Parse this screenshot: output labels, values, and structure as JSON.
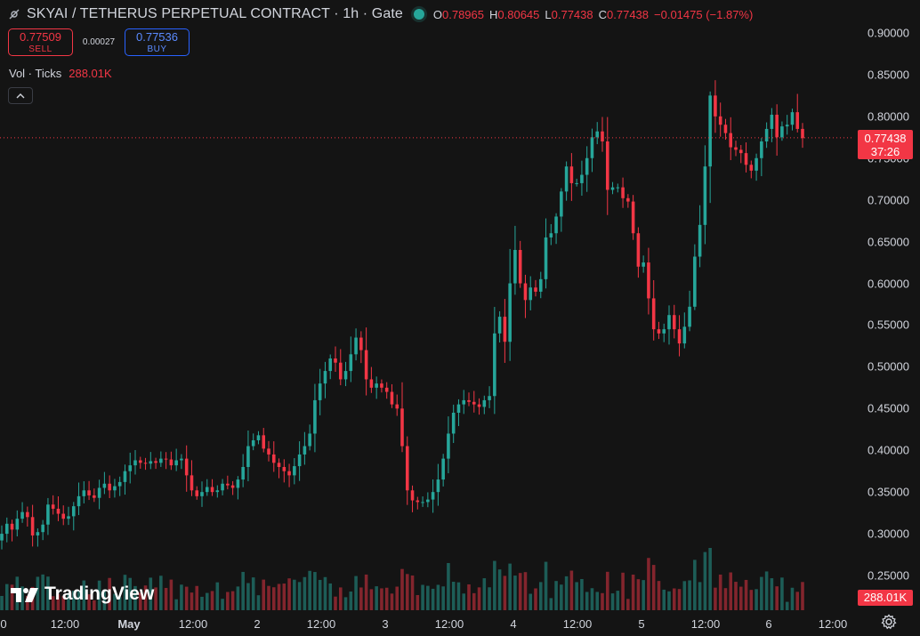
{
  "header": {
    "title": "SKYAI / TETHERUS PERPETUAL CONTRACT · 1h · Gate",
    "o_label": "O",
    "o_value": "0.78965",
    "h_label": "H",
    "h_value": "0.80645",
    "l_label": "L",
    "l_value": "0.77438",
    "c_label": "C",
    "c_value": "0.77438",
    "change": "−0.01475 (−1.87%)"
  },
  "trade": {
    "sell_price": "0.77509",
    "sell_label": "SELL",
    "spread": "0.00027",
    "buy_price": "0.77536",
    "buy_label": "BUY"
  },
  "volume_legend": {
    "label": "Vol · Ticks",
    "value": "288.01K"
  },
  "price_scale": [
    "0.90000",
    "0.85000",
    "0.80000",
    "0.75000",
    "0.70000",
    "0.65000",
    "0.60000",
    "0.55000",
    "0.50000",
    "0.45000",
    "0.40000",
    "0.35000",
    "0.30000",
    "0.25000"
  ],
  "last_price": {
    "price": "0.77438",
    "countdown": "37:26"
  },
  "volume_badge": "288.01K",
  "time_axis": [
    {
      "label": "0",
      "bold": false
    },
    {
      "label": "12:00",
      "bold": false
    },
    {
      "label": "May",
      "bold": true
    },
    {
      "label": "12:00",
      "bold": false
    },
    {
      "label": "2",
      "bold": false
    },
    {
      "label": "12:00",
      "bold": false
    },
    {
      "label": "3",
      "bold": false
    },
    {
      "label": "12:00",
      "bold": false
    },
    {
      "label": "4",
      "bold": false
    },
    {
      "label": "12:00",
      "bold": false
    },
    {
      "label": "5",
      "bold": false
    },
    {
      "label": "12:00",
      "bold": false
    },
    {
      "label": "6",
      "bold": false
    },
    {
      "label": "12:00",
      "bold": false
    }
  ],
  "brand": "TradingView",
  "colors": {
    "up": "#26a69a",
    "down": "#f23645",
    "background": "#141414",
    "buy": "#2962ff"
  },
  "icons": {
    "symbol": "eye-slash-icon",
    "collapse": "chevron-up-icon",
    "settings": "gear-icon"
  },
  "chart_data": {
    "type": "candlestick",
    "price_range": [
      0.24,
      0.91
    ],
    "closes": [
      0.3,
      0.312,
      0.305,
      0.318,
      0.326,
      0.32,
      0.298,
      0.302,
      0.311,
      0.335,
      0.33,
      0.324,
      0.318,
      0.321,
      0.333,
      0.345,
      0.352,
      0.346,
      0.343,
      0.355,
      0.36,
      0.352,
      0.357,
      0.362,
      0.375,
      0.382,
      0.388,
      0.385,
      0.384,
      0.387,
      0.385,
      0.39,
      0.389,
      0.382,
      0.388,
      0.39,
      0.37,
      0.352,
      0.345,
      0.35,
      0.356,
      0.35,
      0.352,
      0.36,
      0.358,
      0.355,
      0.365,
      0.38,
      0.405,
      0.412,
      0.418,
      0.402,
      0.395,
      0.385,
      0.38,
      0.375,
      0.37,
      0.381,
      0.395,
      0.405,
      0.42,
      0.46,
      0.48,
      0.495,
      0.51,
      0.505,
      0.485,
      0.495,
      0.515,
      0.535,
      0.52,
      0.485,
      0.475,
      0.48,
      0.475,
      0.47,
      0.455,
      0.45,
      0.405,
      0.352,
      0.34,
      0.338,
      0.338,
      0.341,
      0.35,
      0.365,
      0.39,
      0.42,
      0.445,
      0.455,
      0.46,
      0.458,
      0.455,
      0.452,
      0.46,
      0.465,
      0.54,
      0.56,
      0.53,
      0.6,
      0.64,
      0.6,
      0.58,
      0.595,
      0.59,
      0.605,
      0.655,
      0.66,
      0.68,
      0.71,
      0.74,
      0.72,
      0.72,
      0.73,
      0.75,
      0.775,
      0.782,
      0.77,
      0.712,
      0.715,
      0.715,
      0.702,
      0.698,
      0.66,
      0.62,
      0.625,
      0.582,
      0.545,
      0.54,
      0.545,
      0.562,
      0.545,
      0.528,
      0.548,
      0.572,
      0.632,
      0.67,
      0.74,
      0.825,
      0.8,
      0.79,
      0.78,
      0.763,
      0.76,
      0.756,
      0.742,
      0.735,
      0.75,
      0.77,
      0.785,
      0.802,
      0.775,
      0.788,
      0.79,
      0.805,
      0.785,
      0.774
    ],
    "last": 0.77438,
    "volume_badge": "288.01K"
  }
}
